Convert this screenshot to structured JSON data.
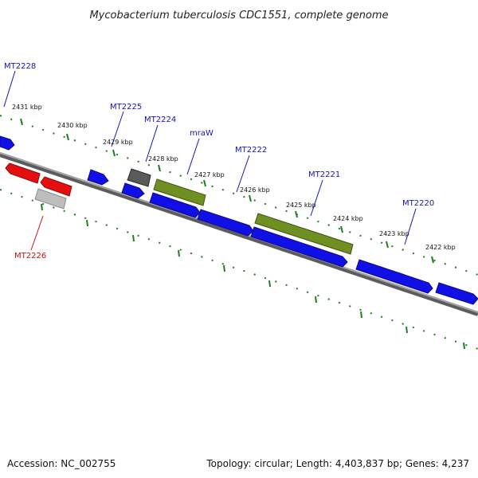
{
  "title": "Mycobacterium tuberculosis CDC1551, complete genome",
  "footer": {
    "accession": "Accession: NC_002755",
    "summary": "Topology: circular; Length: 4,403,837 bp; Genes: 4,237"
  },
  "colors": {
    "forward": "#1010e6",
    "reverse": "#e60f0f",
    "other": "#5a5a5a",
    "rna": "#6f8f22",
    "pseudo": "#bdbdbd",
    "ticks": "#1e7d1e",
    "backbone": "#777777",
    "label_forward": "#1414b4",
    "label_reverse": "#cc1111"
  },
  "scale": {
    "ticks": [
      {
        "label": "2431 kbp"
      },
      {
        "label": "2430 kbp"
      },
      {
        "label": "2429 kbp"
      },
      {
        "label": "2428 kbp"
      },
      {
        "label": "2427 kbp"
      },
      {
        "label": "2426 kbp"
      },
      {
        "label": "2425 kbp"
      },
      {
        "label": "2424 kbp"
      },
      {
        "label": "2423 kbp"
      },
      {
        "label": "2422 kbp"
      }
    ]
  },
  "gene_labels": [
    {
      "text": "MT2228",
      "strand": "forward"
    },
    {
      "text": "MT2225",
      "strand": "forward"
    },
    {
      "text": "MT2224",
      "strand": "forward"
    },
    {
      "text": "mraW",
      "strand": "forward"
    },
    {
      "text": "MT2222",
      "strand": "forward"
    },
    {
      "text": "MT2221",
      "strand": "forward"
    },
    {
      "text": "MT2220",
      "strand": "forward"
    },
    {
      "text": "MT2226",
      "strand": "reverse"
    }
  ]
}
